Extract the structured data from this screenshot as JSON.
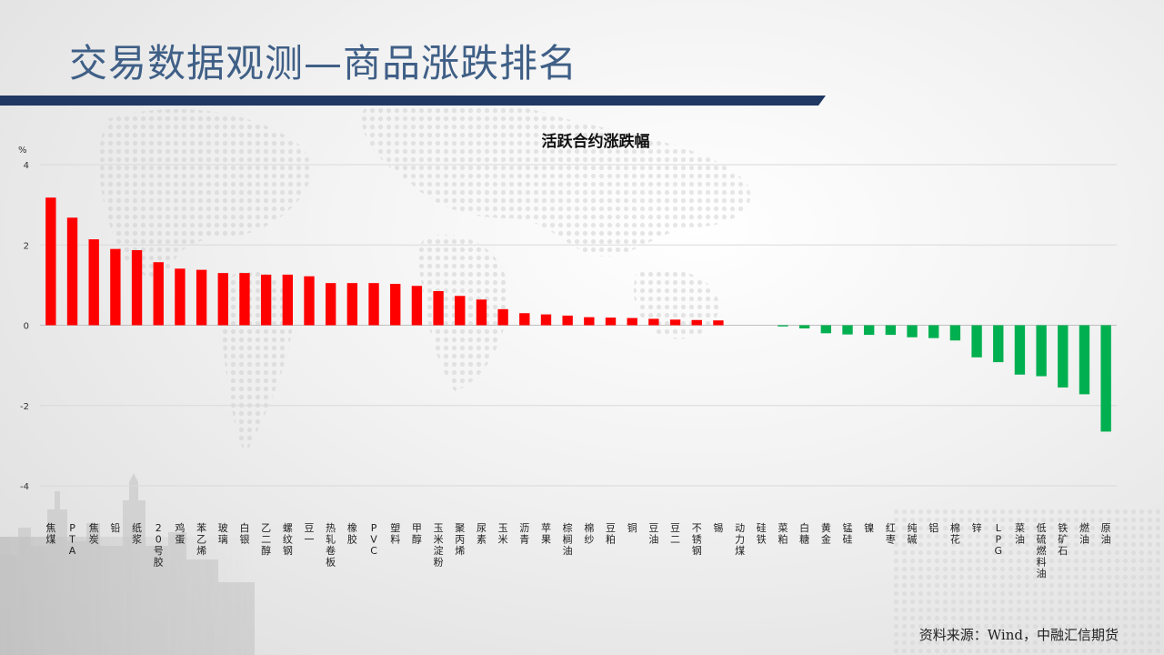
{
  "header": {
    "title": "交易数据观测—商品涨跌排名"
  },
  "footer": {
    "source": "资料来源：Wind，中融汇信期货"
  },
  "colors": {
    "up": "#ff0000",
    "down": "#00b050",
    "accent": "#203864"
  },
  "chart_data": {
    "type": "bar",
    "title": "活跃合约涨跌幅",
    "ylabel": "%",
    "xlabel": "",
    "ylim": [
      -4,
      4
    ],
    "yticks": [
      4,
      2,
      0,
      -2,
      -4
    ],
    "grid": true,
    "categories": [
      "焦煤",
      "PTA",
      "焦炭",
      "铅",
      "纸浆",
      "20号胶",
      "鸡蛋",
      "苯乙烯",
      "玻璃",
      "白银",
      "乙二醇",
      "螺纹钢",
      "豆一",
      "热轧卷板",
      "橡胶",
      "PVC",
      "塑料",
      "甲醇",
      "玉米淀粉",
      "聚丙烯",
      "尿素",
      "玉米",
      "沥青",
      "苹果",
      "棕榈油",
      "棉纱",
      "豆粕",
      "铜",
      "豆油",
      "豆二",
      "不锈钢",
      "锡",
      "动力煤",
      "硅铁",
      "菜粕",
      "白糖",
      "黄金",
      "锰硅",
      "镍",
      "红枣",
      "纯碱",
      "铝",
      "棉花",
      "锌",
      "LPG",
      "菜油",
      "低硫燃料油",
      "铁矿石",
      "燃油",
      "原油"
    ],
    "values": [
      3.18,
      2.68,
      2.14,
      1.9,
      1.87,
      1.57,
      1.41,
      1.38,
      1.3,
      1.3,
      1.26,
      1.26,
      1.22,
      1.05,
      1.05,
      1.05,
      1.03,
      0.98,
      0.85,
      0.73,
      0.64,
      0.4,
      0.3,
      0.27,
      0.24,
      0.2,
      0.19,
      0.18,
      0.16,
      0.14,
      0.13,
      0.12,
      0.0,
      0.0,
      -0.03,
      -0.08,
      -0.2,
      -0.23,
      -0.24,
      -0.24,
      -0.3,
      -0.32,
      -0.38,
      -0.8,
      -0.92,
      -1.23,
      -1.27,
      -1.55,
      -1.72,
      -2.65
    ]
  }
}
